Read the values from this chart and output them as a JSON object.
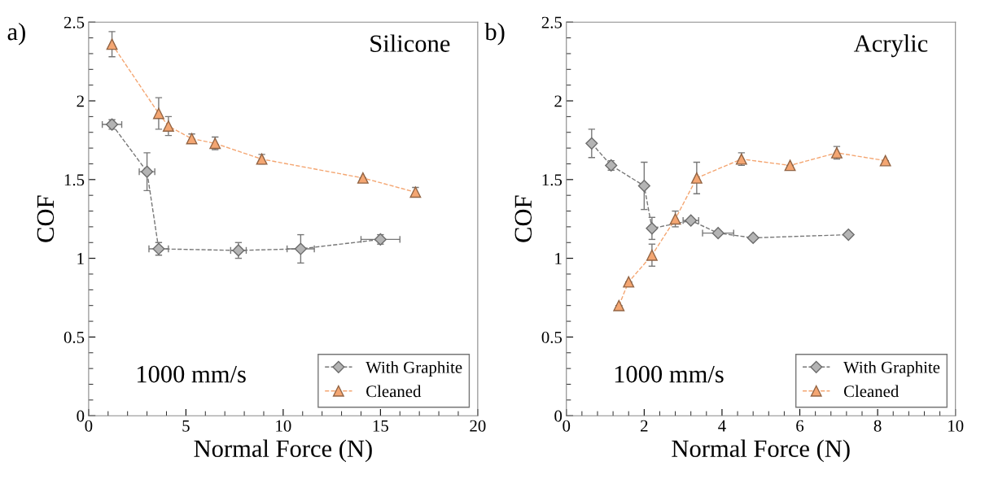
{
  "chart_data": [
    {
      "type": "line",
      "xlabel": "Normal Force (N)",
      "ylabel": "COF",
      "annotations": [
        "a)",
        "Silicone",
        "1000 mm/s"
      ],
      "xlim": [
        0,
        20
      ],
      "xticks": [
        0,
        5,
        10,
        15,
        20
      ],
      "ylim": [
        0,
        2.5
      ],
      "yticks": [
        0,
        0.5,
        1,
        1.5,
        2,
        2.5
      ],
      "grid": false,
      "legend": "bottom right",
      "line_style": "dashed",
      "series": [
        {
          "name": "With Graphite",
          "color": "#b4b4b4",
          "marker": "diamond",
          "x": [
            1.2,
            3.0,
            3.6,
            7.7,
            10.9,
            15.0
          ],
          "values": [
            1.85,
            1.55,
            1.06,
            1.05,
            1.06,
            1.12
          ],
          "errors": [
            0.03,
            0.12,
            0.04,
            0.05,
            0.09,
            0.03
          ],
          "xerrors": [
            0.5,
            0.4,
            0.5,
            0.4,
            0.7,
            1.0
          ]
        },
        {
          "name": "Cleaned",
          "color": "#f4a672",
          "marker": "triangle",
          "x": [
            1.2,
            3.6,
            4.1,
            5.3,
            6.5,
            8.9,
            14.1,
            16.8
          ],
          "values": [
            2.36,
            1.92,
            1.84,
            1.76,
            1.73,
            1.63,
            1.51,
            1.42
          ],
          "errors": [
            0.08,
            0.1,
            0.06,
            0.03,
            0.04,
            0.03,
            null,
            0.03
          ]
        }
      ]
    },
    {
      "type": "line",
      "xlabel": "Normal Force (N)",
      "ylabel": "COF",
      "annotations": [
        "b)",
        "Acrylic",
        "1000 mm/s"
      ],
      "xlim": [
        0,
        10
      ],
      "xticks": [
        0,
        2,
        4,
        6,
        8,
        10
      ],
      "ylim": [
        0,
        2.5
      ],
      "yticks": [
        0,
        0.5,
        1,
        1.5,
        2,
        2.5
      ],
      "grid": false,
      "legend": "bottom right",
      "line_style": "dashed",
      "series": [
        {
          "name": "With Graphite",
          "color": "#b4b4b4",
          "marker": "diamond",
          "x": [
            0.65,
            1.15,
            2.0,
            2.2,
            3.2,
            3.9,
            4.8,
            7.25
          ],
          "values": [
            1.73,
            1.59,
            1.46,
            1.19,
            1.24,
            1.16,
            1.13,
            1.15
          ],
          "errors": [
            0.09,
            0.03,
            0.15,
            0.07,
            null,
            null,
            null,
            null
          ],
          "xerrors": [
            null,
            null,
            null,
            null,
            0.2,
            0.4,
            null,
            null
          ]
        },
        {
          "name": "Cleaned",
          "color": "#f4a672",
          "marker": "triangle",
          "x": [
            1.35,
            1.6,
            2.2,
            2.8,
            3.35,
            4.5,
            5.75,
            6.95,
            8.2
          ],
          "values": [
            0.7,
            0.85,
            1.02,
            1.25,
            1.51,
            1.63,
            1.59,
            1.67,
            1.62
          ],
          "errors": [
            null,
            null,
            0.07,
            0.05,
            0.1,
            0.04,
            null,
            0.04,
            null
          ]
        }
      ]
    }
  ]
}
